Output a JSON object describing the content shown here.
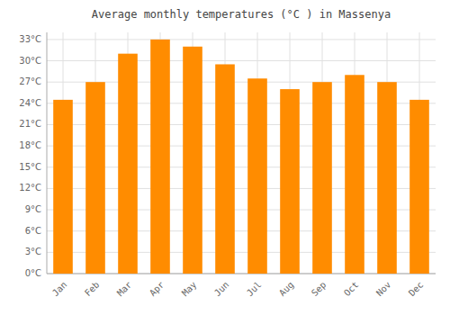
{
  "chart_data": {
    "type": "bar",
    "title": "Average monthly temperatures (°C ) in Massenya",
    "categories": [
      "Jan",
      "Feb",
      "Mar",
      "Apr",
      "May",
      "Jun",
      "Jul",
      "Aug",
      "Sep",
      "Oct",
      "Nov",
      "Dec"
    ],
    "values": [
      24.5,
      27.0,
      31.0,
      33.0,
      32.0,
      29.5,
      27.5,
      26.0,
      27.0,
      28.0,
      27.0,
      24.5
    ],
    "color": "#ff8c00",
    "ylim": [
      0,
      34
    ],
    "yticks": [
      {
        "value": 0,
        "label": "0°C"
      },
      {
        "value": 3,
        "label": "3°C"
      },
      {
        "value": 6,
        "label": "6°C"
      },
      {
        "value": 9,
        "label": "9°C"
      },
      {
        "value": 12,
        "label": "12°C"
      },
      {
        "value": 15,
        "label": "15°C"
      },
      {
        "value": 18,
        "label": "18°C"
      },
      {
        "value": 21,
        "label": "21°C"
      },
      {
        "value": 24,
        "label": "24°C"
      },
      {
        "value": 27,
        "label": "27°C"
      },
      {
        "value": 30,
        "label": "30°C"
      },
      {
        "value": 33,
        "label": "33°C"
      }
    ],
    "grid": true
  }
}
